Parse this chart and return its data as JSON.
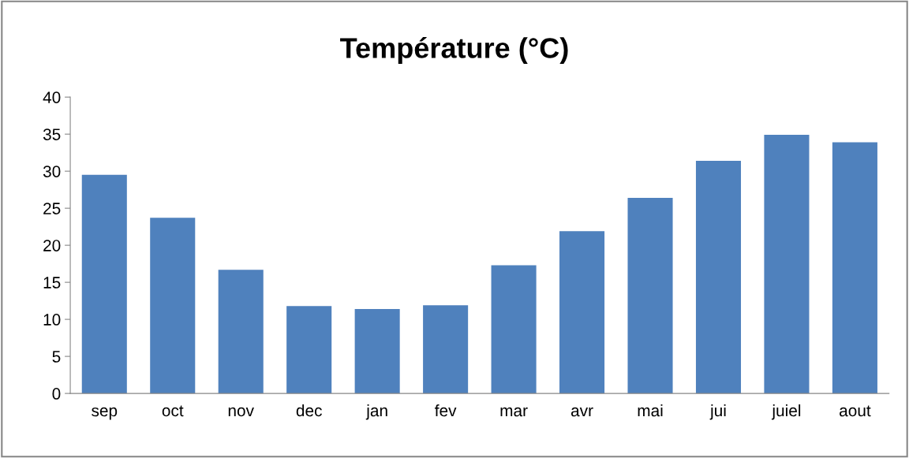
{
  "chart_data": {
    "type": "bar",
    "title": "Température (°C)",
    "categories": [
      "sep",
      "oct",
      "nov",
      "dec",
      "jan",
      "fev",
      "mar",
      "avr",
      "mai",
      "jui",
      "juiel",
      "aout"
    ],
    "values": [
      29.5,
      23.7,
      16.7,
      11.8,
      11.4,
      11.9,
      17.3,
      21.9,
      26.4,
      31.4,
      34.9,
      33.9
    ],
    "color": "#4f81bd",
    "ylim": [
      0,
      40
    ],
    "yticks": [
      0,
      5,
      10,
      15,
      20,
      25,
      30,
      35,
      40
    ],
    "grid": false,
    "legend": false
  }
}
